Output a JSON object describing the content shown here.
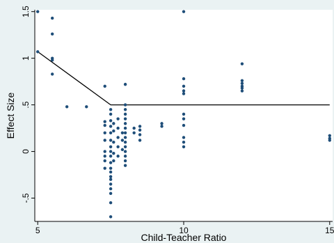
{
  "chart_data": {
    "type": "scatter",
    "xlabel": "Child-Teacher Ratio",
    "ylabel": "Effect Size",
    "xlim": [
      4.9,
      15.1
    ],
    "ylim": [
      -0.75,
      1.52
    ],
    "x_ticks": [
      5,
      10,
      15
    ],
    "x_tick_labels": [
      "5",
      "10",
      "15"
    ],
    "y_ticks": [
      -0.5,
      0,
      0.5,
      1,
      1.5
    ],
    "y_tick_labels": [
      "-.5",
      "0",
      ".5",
      "1",
      "1.5"
    ],
    "grid": false,
    "colors": {
      "points": "#1f4e79",
      "line": "#000000",
      "plot_bg": "#ffffff",
      "figure_bg": "#eaf2f3"
    },
    "points": [
      [
        5,
        1.5
      ],
      [
        5,
        1.07
      ],
      [
        5.5,
        1.43
      ],
      [
        5.5,
        1.26
      ],
      [
        5.5,
        1.0
      ],
      [
        5.5,
        0.98
      ],
      [
        5.5,
        0.83
      ],
      [
        6,
        0.48
      ],
      [
        6.67,
        0.48
      ],
      [
        7.3,
        0.7
      ],
      [
        7.3,
        0.32
      ],
      [
        7.3,
        0.28
      ],
      [
        7.3,
        0.2
      ],
      [
        7.3,
        0.12
      ],
      [
        7.3,
        0.0
      ],
      [
        7.3,
        -0.05
      ],
      [
        7.3,
        -0.1
      ],
      [
        7.3,
        -0.18
      ],
      [
        7.5,
        0.45
      ],
      [
        7.5,
        0.4
      ],
      [
        7.5,
        0.33
      ],
      [
        7.5,
        0.27
      ],
      [
        7.5,
        0.2
      ],
      [
        7.5,
        0.12
      ],
      [
        7.5,
        0.05
      ],
      [
        7.5,
        0.0
      ],
      [
        7.5,
        -0.05
      ],
      [
        7.5,
        -0.12
      ],
      [
        7.5,
        -0.18
      ],
      [
        7.5,
        -0.22
      ],
      [
        7.5,
        -0.27
      ],
      [
        7.5,
        -0.3
      ],
      [
        7.5,
        -0.35
      ],
      [
        7.5,
        -0.4
      ],
      [
        7.5,
        -0.45
      ],
      [
        7.5,
        -0.55
      ],
      [
        7.5,
        -0.7
      ],
      [
        7.6,
        0.3
      ],
      [
        7.6,
        0.22
      ],
      [
        7.6,
        0.1
      ],
      [
        7.6,
        -0.02
      ],
      [
        7.6,
        -0.1
      ],
      [
        7.75,
        0.35
      ],
      [
        7.75,
        0.25
      ],
      [
        7.75,
        0.15
      ],
      [
        7.75,
        0.05
      ],
      [
        7.75,
        -0.05
      ],
      [
        7.9,
        0.2
      ],
      [
        7.9,
        0.12
      ],
      [
        7.9,
        0.02
      ],
      [
        8,
        0.72
      ],
      [
        8,
        0.5
      ],
      [
        8,
        0.45
      ],
      [
        8,
        0.4
      ],
      [
        8,
        0.35
      ],
      [
        8,
        0.3
      ],
      [
        8,
        0.25
      ],
      [
        8,
        0.2
      ],
      [
        8,
        0.15
      ],
      [
        8,
        0.1
      ],
      [
        8,
        0.05
      ],
      [
        8,
        0.0
      ],
      [
        8,
        -0.05
      ],
      [
        8,
        -0.1
      ],
      [
        8,
        -0.15
      ],
      [
        8.3,
        0.25
      ],
      [
        8.3,
        0.2
      ],
      [
        8.5,
        0.27
      ],
      [
        8.5,
        0.23
      ],
      [
        8.5,
        0.18
      ],
      [
        8.5,
        0.12
      ],
      [
        9.25,
        0.3
      ],
      [
        9.25,
        0.27
      ],
      [
        10,
        1.5
      ],
      [
        10,
        0.78
      ],
      [
        10,
        0.7
      ],
      [
        10,
        0.65
      ],
      [
        10,
        0.62
      ],
      [
        10,
        0.4
      ],
      [
        10,
        0.35
      ],
      [
        10,
        0.28
      ],
      [
        10,
        0.15
      ],
      [
        10,
        0.1
      ],
      [
        10,
        0.05
      ],
      [
        12,
        0.94
      ],
      [
        12,
        0.76
      ],
      [
        12,
        0.73
      ],
      [
        12,
        0.7
      ],
      [
        12,
        0.68
      ],
      [
        12,
        0.65
      ],
      [
        15,
        0.17
      ],
      [
        15,
        0.14
      ],
      [
        15,
        0.12
      ]
    ],
    "fit_line": {
      "x": [
        5,
        7.5,
        15
      ],
      "y": [
        1.07,
        0.5,
        0.5
      ]
    }
  }
}
